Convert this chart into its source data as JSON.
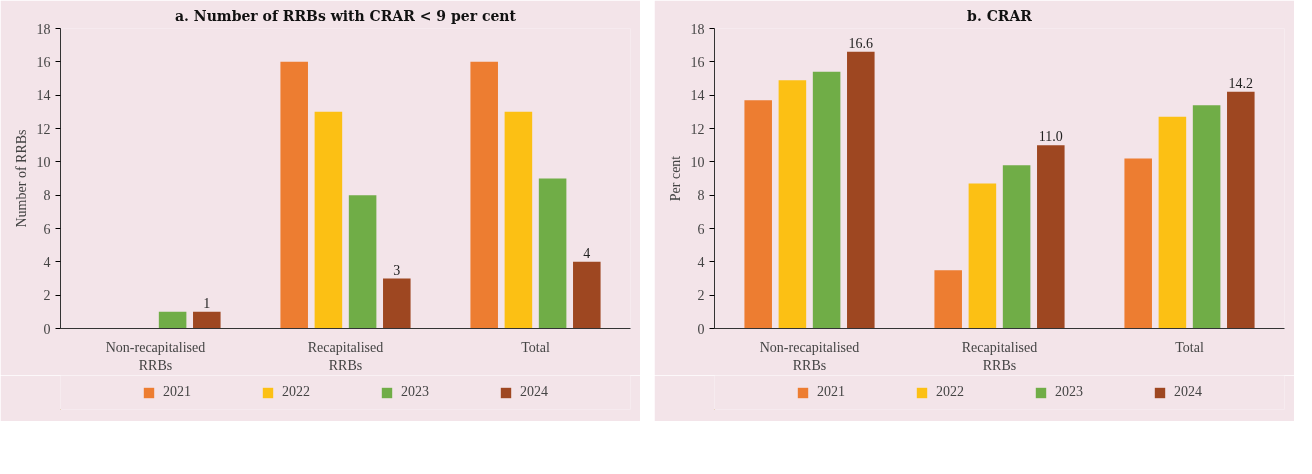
{
  "chart_data": [
    {
      "type": "bar",
      "title": "a. Number of RRBs with CRAR < 9 per cent",
      "ylabel": "Number of RRBs",
      "categories": [
        "Non-recapitalised\nRRBs",
        "Recapitalised\nRRBs",
        "Total"
      ],
      "series": [
        {
          "name": "2021",
          "color": "#ed7d31",
          "values": [
            0,
            16,
            16
          ]
        },
        {
          "name": "2022",
          "color": "#fcc014",
          "values": [
            0,
            13,
            13
          ]
        },
        {
          "name": "2023",
          "color": "#70ad47",
          "values": [
            1,
            8,
            9
          ]
        },
        {
          "name": "2024",
          "color": "#9e4721",
          "values": [
            1,
            3,
            4
          ],
          "value_labels": [
            "1",
            "3",
            "4"
          ]
        }
      ],
      "ylim": [
        0,
        18
      ],
      "yticks": [
        0,
        2,
        4,
        6,
        8,
        10,
        12,
        14,
        16,
        18
      ],
      "grid": false,
      "legend": "bottom"
    },
    {
      "type": "bar",
      "title": "b. CRAR",
      "ylabel": "Per cent",
      "categories": [
        "Non-recapitalised\nRRBs",
        "Recapitalised\nRRBs",
        "Total"
      ],
      "series": [
        {
          "name": "2021",
          "color": "#ed7d31",
          "values": [
            13.7,
            3.5,
            10.2
          ]
        },
        {
          "name": "2022",
          "color": "#fcc014",
          "values": [
            14.9,
            8.7,
            12.7
          ]
        },
        {
          "name": "2023",
          "color": "#70ad47",
          "values": [
            15.4,
            9.8,
            13.4
          ]
        },
        {
          "name": "2024",
          "color": "#9e4721",
          "values": [
            16.6,
            11.0,
            14.2
          ],
          "value_labels": [
            "16.6",
            "11.0",
            "14.2"
          ]
        }
      ],
      "ylim": [
        0,
        18
      ],
      "yticks": [
        0,
        2,
        4,
        6,
        8,
        10,
        12,
        14,
        16,
        18
      ],
      "grid": false,
      "legend": "bottom"
    }
  ]
}
